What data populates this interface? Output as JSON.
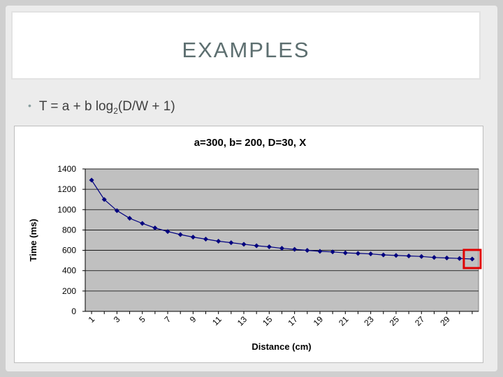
{
  "slide": {
    "title": "EXAMPLES",
    "bullet": {
      "marker": "•",
      "prefix": "T = a + b log",
      "subscript": "2",
      "suffix": "(D/W + 1)"
    }
  },
  "chart_data": {
    "type": "line",
    "title": "a=300, b= 200, D=30, X",
    "xlabel": "Distance (cm)",
    "ylabel": "Time (ms)",
    "ylim": [
      0,
      1400
    ],
    "yticks": [
      0,
      200,
      400,
      600,
      800,
      1000,
      1200,
      1400
    ],
    "x": [
      1,
      2,
      3,
      4,
      5,
      6,
      7,
      8,
      9,
      10,
      11,
      12,
      13,
      14,
      15,
      16,
      17,
      18,
      19,
      20,
      21,
      22,
      23,
      24,
      25,
      26,
      27,
      28,
      29,
      30,
      31
    ],
    "xtick_labels": [
      "1",
      "3",
      "5",
      "7",
      "9",
      "11",
      "13",
      "15",
      "17",
      "19",
      "21",
      "23",
      "25",
      "27",
      "29"
    ],
    "series": [
      {
        "values": [
          1290,
          1100,
          990,
          915,
          865,
          820,
          785,
          755,
          730,
          710,
          690,
          675,
          660,
          645,
          635,
          620,
          610,
          600,
          590,
          585,
          575,
          570,
          565,
          555,
          550,
          545,
          540,
          530,
          525,
          520,
          515
        ]
      }
    ],
    "plot_background": "#c0c0c0",
    "line_color": "#00007f",
    "grid": true,
    "highlight_point_index": 30,
    "highlight_color": "#e00000"
  }
}
